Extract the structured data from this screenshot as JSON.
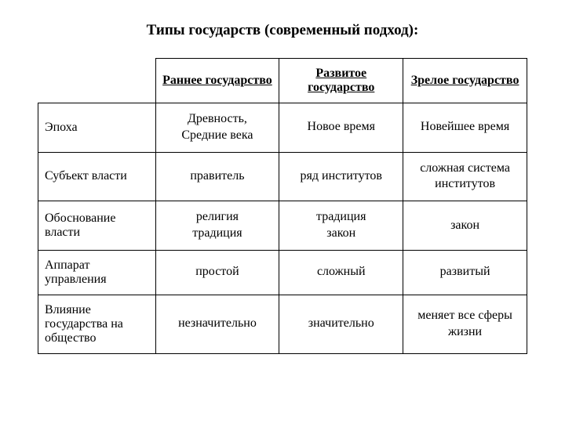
{
  "title": "Типы государств (современный подход):",
  "columns": [
    "",
    "Раннее государство",
    "Развитое государство",
    "Зрелое государство"
  ],
  "rows": [
    {
      "label": "Эпоха",
      "cells": [
        [
          "Древность,",
          "Средние века"
        ],
        [
          "Новое время"
        ],
        [
          "Новейшее время"
        ]
      ]
    },
    {
      "label": "Субъект власти",
      "cells": [
        [
          "правитель"
        ],
        [
          "ряд институтов"
        ],
        [
          "сложная система",
          "институтов"
        ]
      ]
    },
    {
      "label": "Обоснование власти",
      "cells": [
        [
          "религия",
          "традиция"
        ],
        [
          "традиция",
          "закон"
        ],
        [
          "закон"
        ]
      ]
    },
    {
      "label": "Аппарат управления",
      "cells": [
        [
          "простой"
        ],
        [
          "сложный"
        ],
        [
          "развитый"
        ]
      ]
    },
    {
      "label": "Влияние государства на общество",
      "cells": [
        [
          "незначительно"
        ],
        [
          "значительно"
        ],
        [
          "меняет все сферы",
          "жизни"
        ]
      ]
    }
  ],
  "colors": {
    "bg": "#ffffff",
    "border": "#000000",
    "text": "#000000"
  }
}
